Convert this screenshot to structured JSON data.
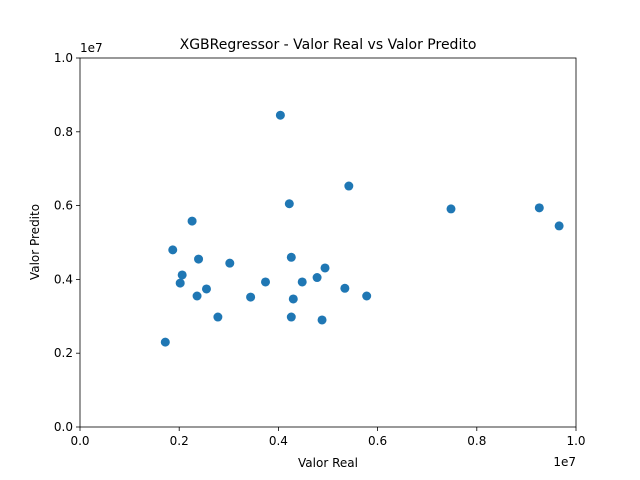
{
  "chart_data": {
    "type": "scatter",
    "title": "XGBRegressor - Valor Real vs Valor Predito",
    "xlabel": "Valor Real",
    "ylabel": "Valor Predito",
    "xlim": [
      0,
      10000000
    ],
    "ylim": [
      0,
      10000000
    ],
    "x_ticks": [
      0,
      2000000,
      4000000,
      6000000,
      8000000,
      10000000
    ],
    "x_tick_labels": [
      "0.0",
      "0.2",
      "0.4",
      "0.6",
      "0.8",
      "1.0"
    ],
    "y_ticks": [
      0,
      2000000,
      4000000,
      6000000,
      8000000,
      10000000
    ],
    "y_tick_labels": [
      "0.0",
      "0.2",
      "0.4",
      "0.6",
      "0.8",
      "1.0"
    ],
    "x_offset_label": "1e7",
    "y_offset_label": "1e7",
    "grid": false,
    "marker_color": "#1f77b4",
    "points": [
      {
        "x": 1720000,
        "y": 2300000
      },
      {
        "x": 1870000,
        "y": 4800000
      },
      {
        "x": 2020000,
        "y": 3900000
      },
      {
        "x": 2060000,
        "y": 4120000
      },
      {
        "x": 2260000,
        "y": 5580000
      },
      {
        "x": 2360000,
        "y": 3550000
      },
      {
        "x": 2390000,
        "y": 4550000
      },
      {
        "x": 2550000,
        "y": 3740000
      },
      {
        "x": 2780000,
        "y": 2980000
      },
      {
        "x": 3020000,
        "y": 4440000
      },
      {
        "x": 3440000,
        "y": 3520000
      },
      {
        "x": 3740000,
        "y": 3930000
      },
      {
        "x": 4040000,
        "y": 8450000
      },
      {
        "x": 4220000,
        "y": 6050000
      },
      {
        "x": 4260000,
        "y": 4600000
      },
      {
        "x": 4260000,
        "y": 2980000
      },
      {
        "x": 4300000,
        "y": 3470000
      },
      {
        "x": 4480000,
        "y": 3930000
      },
      {
        "x": 4780000,
        "y": 4050000
      },
      {
        "x": 4880000,
        "y": 2900000
      },
      {
        "x": 4940000,
        "y": 4310000
      },
      {
        "x": 5340000,
        "y": 3760000
      },
      {
        "x": 5420000,
        "y": 6530000
      },
      {
        "x": 5780000,
        "y": 3550000
      },
      {
        "x": 7480000,
        "y": 5910000
      },
      {
        "x": 9260000,
        "y": 5940000
      },
      {
        "x": 9660000,
        "y": 5450000
      }
    ]
  }
}
